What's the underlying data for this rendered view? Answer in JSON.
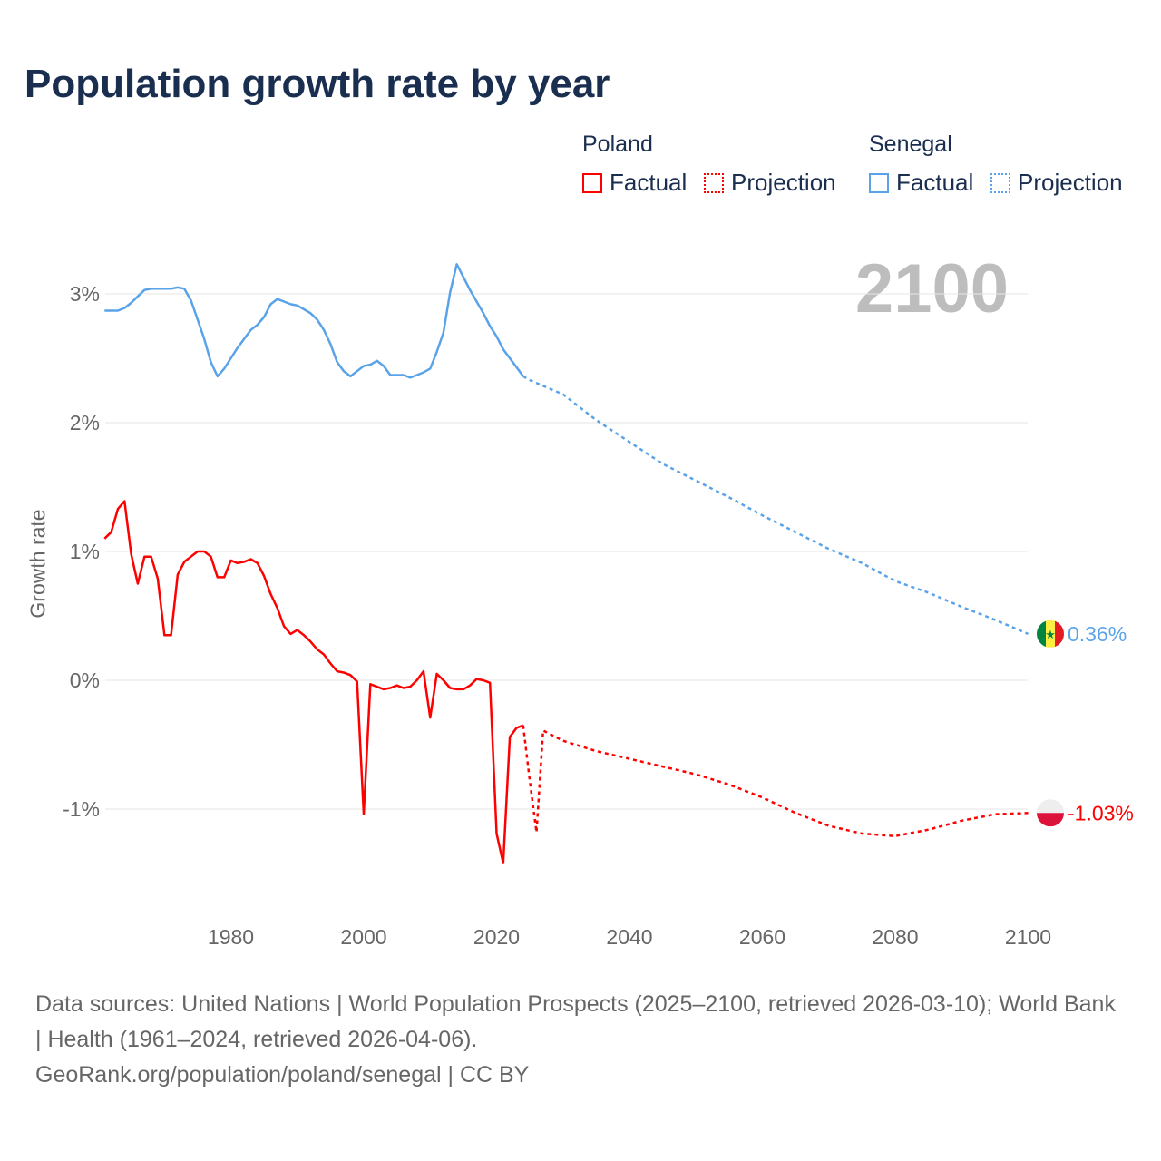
{
  "title": "Population growth rate by year",
  "year_label": "2100",
  "legend": {
    "groups": [
      {
        "name": "Poland",
        "color": "#ff0000",
        "factual": "Factual",
        "projection": "Projection"
      },
      {
        "name": "Senegal",
        "color": "#5ba3e8",
        "factual": "Factual",
        "projection": "Projection"
      }
    ]
  },
  "footer": {
    "sources": "Data sources: United Nations | World Population Prospects (2025–2100, retrieved 2026-03-10); World Bank | Health (1961–2024, retrieved 2026-04-06).",
    "link": "GeoRank.org/population/poland/senegal | CC BY"
  },
  "chart_data": {
    "type": "line",
    "title": "Population growth rate by year",
    "xlabel": "",
    "ylabel": "Growth rate",
    "xlim": [
      1961,
      2100
    ],
    "ylim": [
      -1.8,
      3.4
    ],
    "x_ticks": [
      1980,
      2000,
      2020,
      2040,
      2060,
      2080,
      2100
    ],
    "x_tick_labels": [
      "1980",
      "2000",
      "2020",
      "2040",
      "2060",
      "2080",
      "2100"
    ],
    "y_ticks": [
      -1,
      0,
      1,
      2,
      3
    ],
    "y_tick_labels": [
      "-1%",
      "0%",
      "1%",
      "2%",
      "3%"
    ],
    "grid": true,
    "legend_position": "top-right",
    "series": [
      {
        "name": "Poland",
        "color": "#ff0000",
        "end_label": "-1.03%",
        "factual": {
          "x": [
            1961,
            1962,
            1963,
            1964,
            1965,
            1966,
            1967,
            1968,
            1969,
            1970,
            1971,
            1972,
            1973,
            1974,
            1975,
            1976,
            1977,
            1978,
            1979,
            1980,
            1981,
            1982,
            1983,
            1984,
            1985,
            1986,
            1987,
            1988,
            1989,
            1990,
            1991,
            1992,
            1993,
            1994,
            1995,
            1996,
            1997,
            1998,
            1999,
            2000,
            2001,
            2002,
            2003,
            2004,
            2005,
            2006,
            2007,
            2008,
            2009,
            2010,
            2011,
            2012,
            2013,
            2014,
            2015,
            2016,
            2017,
            2018,
            2019,
            2020,
            2021,
            2022,
            2023,
            2024
          ],
          "y": [
            1.1,
            1.15,
            1.33,
            1.39,
            0.98,
            0.75,
            0.96,
            0.96,
            0.79,
            0.35,
            0.35,
            0.82,
            0.92,
            0.96,
            1.0,
            1.0,
            0.96,
            0.8,
            0.8,
            0.93,
            0.91,
            0.92,
            0.94,
            0.91,
            0.81,
            0.67,
            0.56,
            0.42,
            0.36,
            0.39,
            0.35,
            0.3,
            0.24,
            0.2,
            0.13,
            0.07,
            0.06,
            0.04,
            -0.01,
            -1.04,
            -0.03,
            -0.05,
            -0.07,
            -0.06,
            -0.04,
            -0.06,
            -0.05,
            0.0,
            0.07,
            -0.29,
            0.05,
            0.0,
            -0.06,
            -0.07,
            -0.07,
            -0.04,
            0.01,
            0.0,
            -0.02,
            -1.19,
            -1.42,
            -0.44,
            -0.37,
            -0.35
          ]
        },
        "projection": {
          "x": [
            2024,
            2025,
            2026,
            2027,
            2030,
            2035,
            2040,
            2045,
            2050,
            2055,
            2060,
            2065,
            2070,
            2075,
            2080,
            2085,
            2090,
            2095,
            2100
          ],
          "y": [
            -0.35,
            -0.78,
            -1.18,
            -0.39,
            -0.47,
            -0.55,
            -0.61,
            -0.67,
            -0.73,
            -0.81,
            -0.91,
            -1.03,
            -1.13,
            -1.19,
            -1.21,
            -1.16,
            -1.09,
            -1.04,
            -1.03
          ]
        }
      },
      {
        "name": "Senegal",
        "color": "#5ba3e8",
        "end_label": "0.36%",
        "factual": {
          "x": [
            1961,
            1962,
            1963,
            1964,
            1965,
            1966,
            1967,
            1968,
            1969,
            1970,
            1971,
            1972,
            1973,
            1974,
            1975,
            1976,
            1977,
            1978,
            1979,
            1980,
            1981,
            1982,
            1983,
            1984,
            1985,
            1986,
            1987,
            1988,
            1989,
            1990,
            1991,
            1992,
            1993,
            1994,
            1995,
            1996,
            1997,
            1998,
            1999,
            2000,
            2001,
            2002,
            2003,
            2004,
            2005,
            2006,
            2007,
            2008,
            2009,
            2010,
            2011,
            2012,
            2013,
            2014,
            2015,
            2016,
            2017,
            2018,
            2019,
            2020,
            2021,
            2022,
            2023,
            2024
          ],
          "y": [
            2.87,
            2.87,
            2.87,
            2.89,
            2.93,
            2.98,
            3.03,
            3.04,
            3.04,
            3.04,
            3.04,
            3.05,
            3.04,
            2.95,
            2.8,
            2.65,
            2.47,
            2.36,
            2.42,
            2.5,
            2.58,
            2.65,
            2.72,
            2.76,
            2.82,
            2.92,
            2.96,
            2.94,
            2.92,
            2.91,
            2.88,
            2.85,
            2.8,
            2.72,
            2.61,
            2.47,
            2.4,
            2.36,
            2.4,
            2.44,
            2.45,
            2.48,
            2.44,
            2.37,
            2.37,
            2.37,
            2.35,
            2.37,
            2.39,
            2.42,
            2.55,
            2.7,
            3.01,
            3.23,
            3.13,
            3.03,
            2.94,
            2.85,
            2.75,
            2.67,
            2.57,
            2.5,
            2.43,
            2.36
          ]
        },
        "projection": {
          "x": [
            2024,
            2025,
            2030,
            2035,
            2040,
            2045,
            2050,
            2055,
            2060,
            2065,
            2070,
            2075,
            2080,
            2085,
            2090,
            2095,
            2100
          ],
          "y": [
            2.36,
            2.33,
            2.22,
            2.02,
            1.85,
            1.68,
            1.55,
            1.42,
            1.28,
            1.15,
            1.02,
            0.91,
            0.77,
            0.68,
            0.57,
            0.47,
            0.36
          ]
        }
      }
    ]
  }
}
